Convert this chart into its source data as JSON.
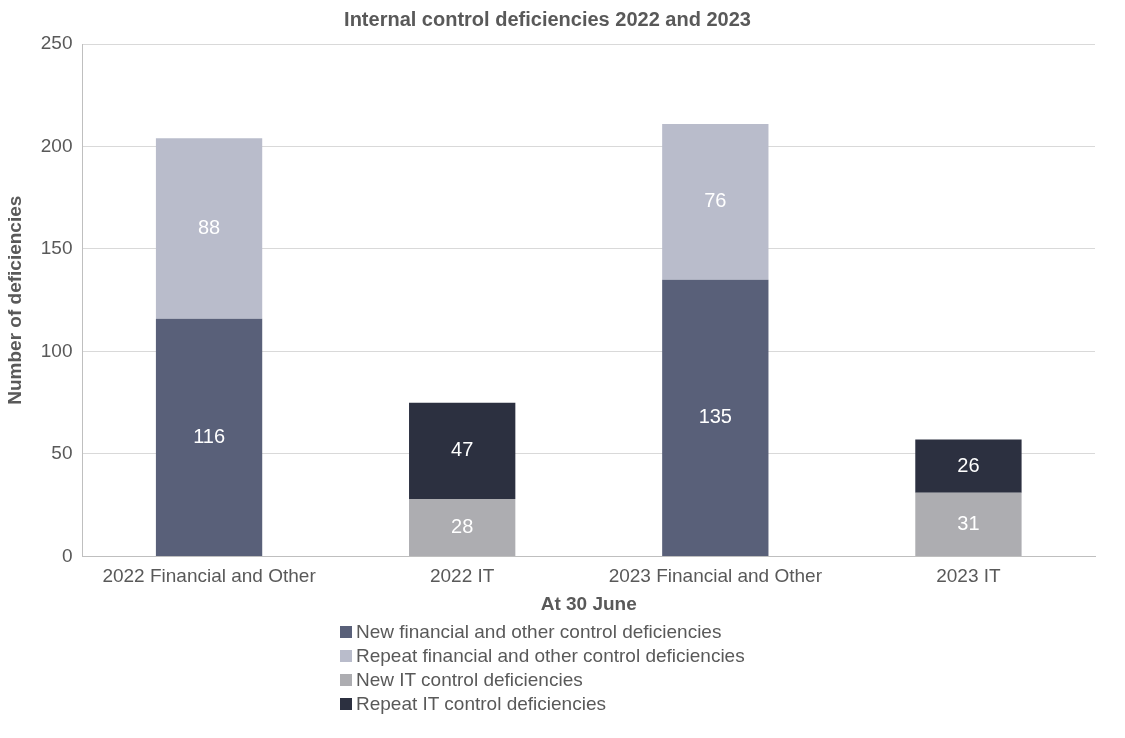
{
  "chart_data": {
    "type": "bar",
    "title": "Internal control deficiencies 2022 and 2023",
    "xlabel": "At 30 June",
    "ylabel": "Number of deficiencies",
    "categories": [
      "2022 Financial and Other",
      "2022 IT",
      "2023 Financial and Other",
      "2023 IT"
    ],
    "series": [
      {
        "name": "New financial and other control deficiencies",
        "color": "#596079",
        "values": [
          116,
          null,
          135,
          null
        ]
      },
      {
        "name": "Repeat financial and other control deficiencies",
        "color": "#b9bccb",
        "values": [
          88,
          null,
          76,
          null
        ]
      },
      {
        "name": "New IT control deficiencies",
        "color": "#adadb1",
        "values": [
          null,
          28,
          null,
          31
        ]
      },
      {
        "name": "Repeat IT control deficiencies",
        "color": "#2c3040",
        "values": [
          null,
          47,
          null,
          26
        ]
      }
    ],
    "stacked": true,
    "ylim": [
      0,
      250
    ],
    "yticks": [
      0,
      50,
      100,
      150,
      200,
      250
    ],
    "grid": "y",
    "legend": "bottom",
    "data_labels": true
  }
}
